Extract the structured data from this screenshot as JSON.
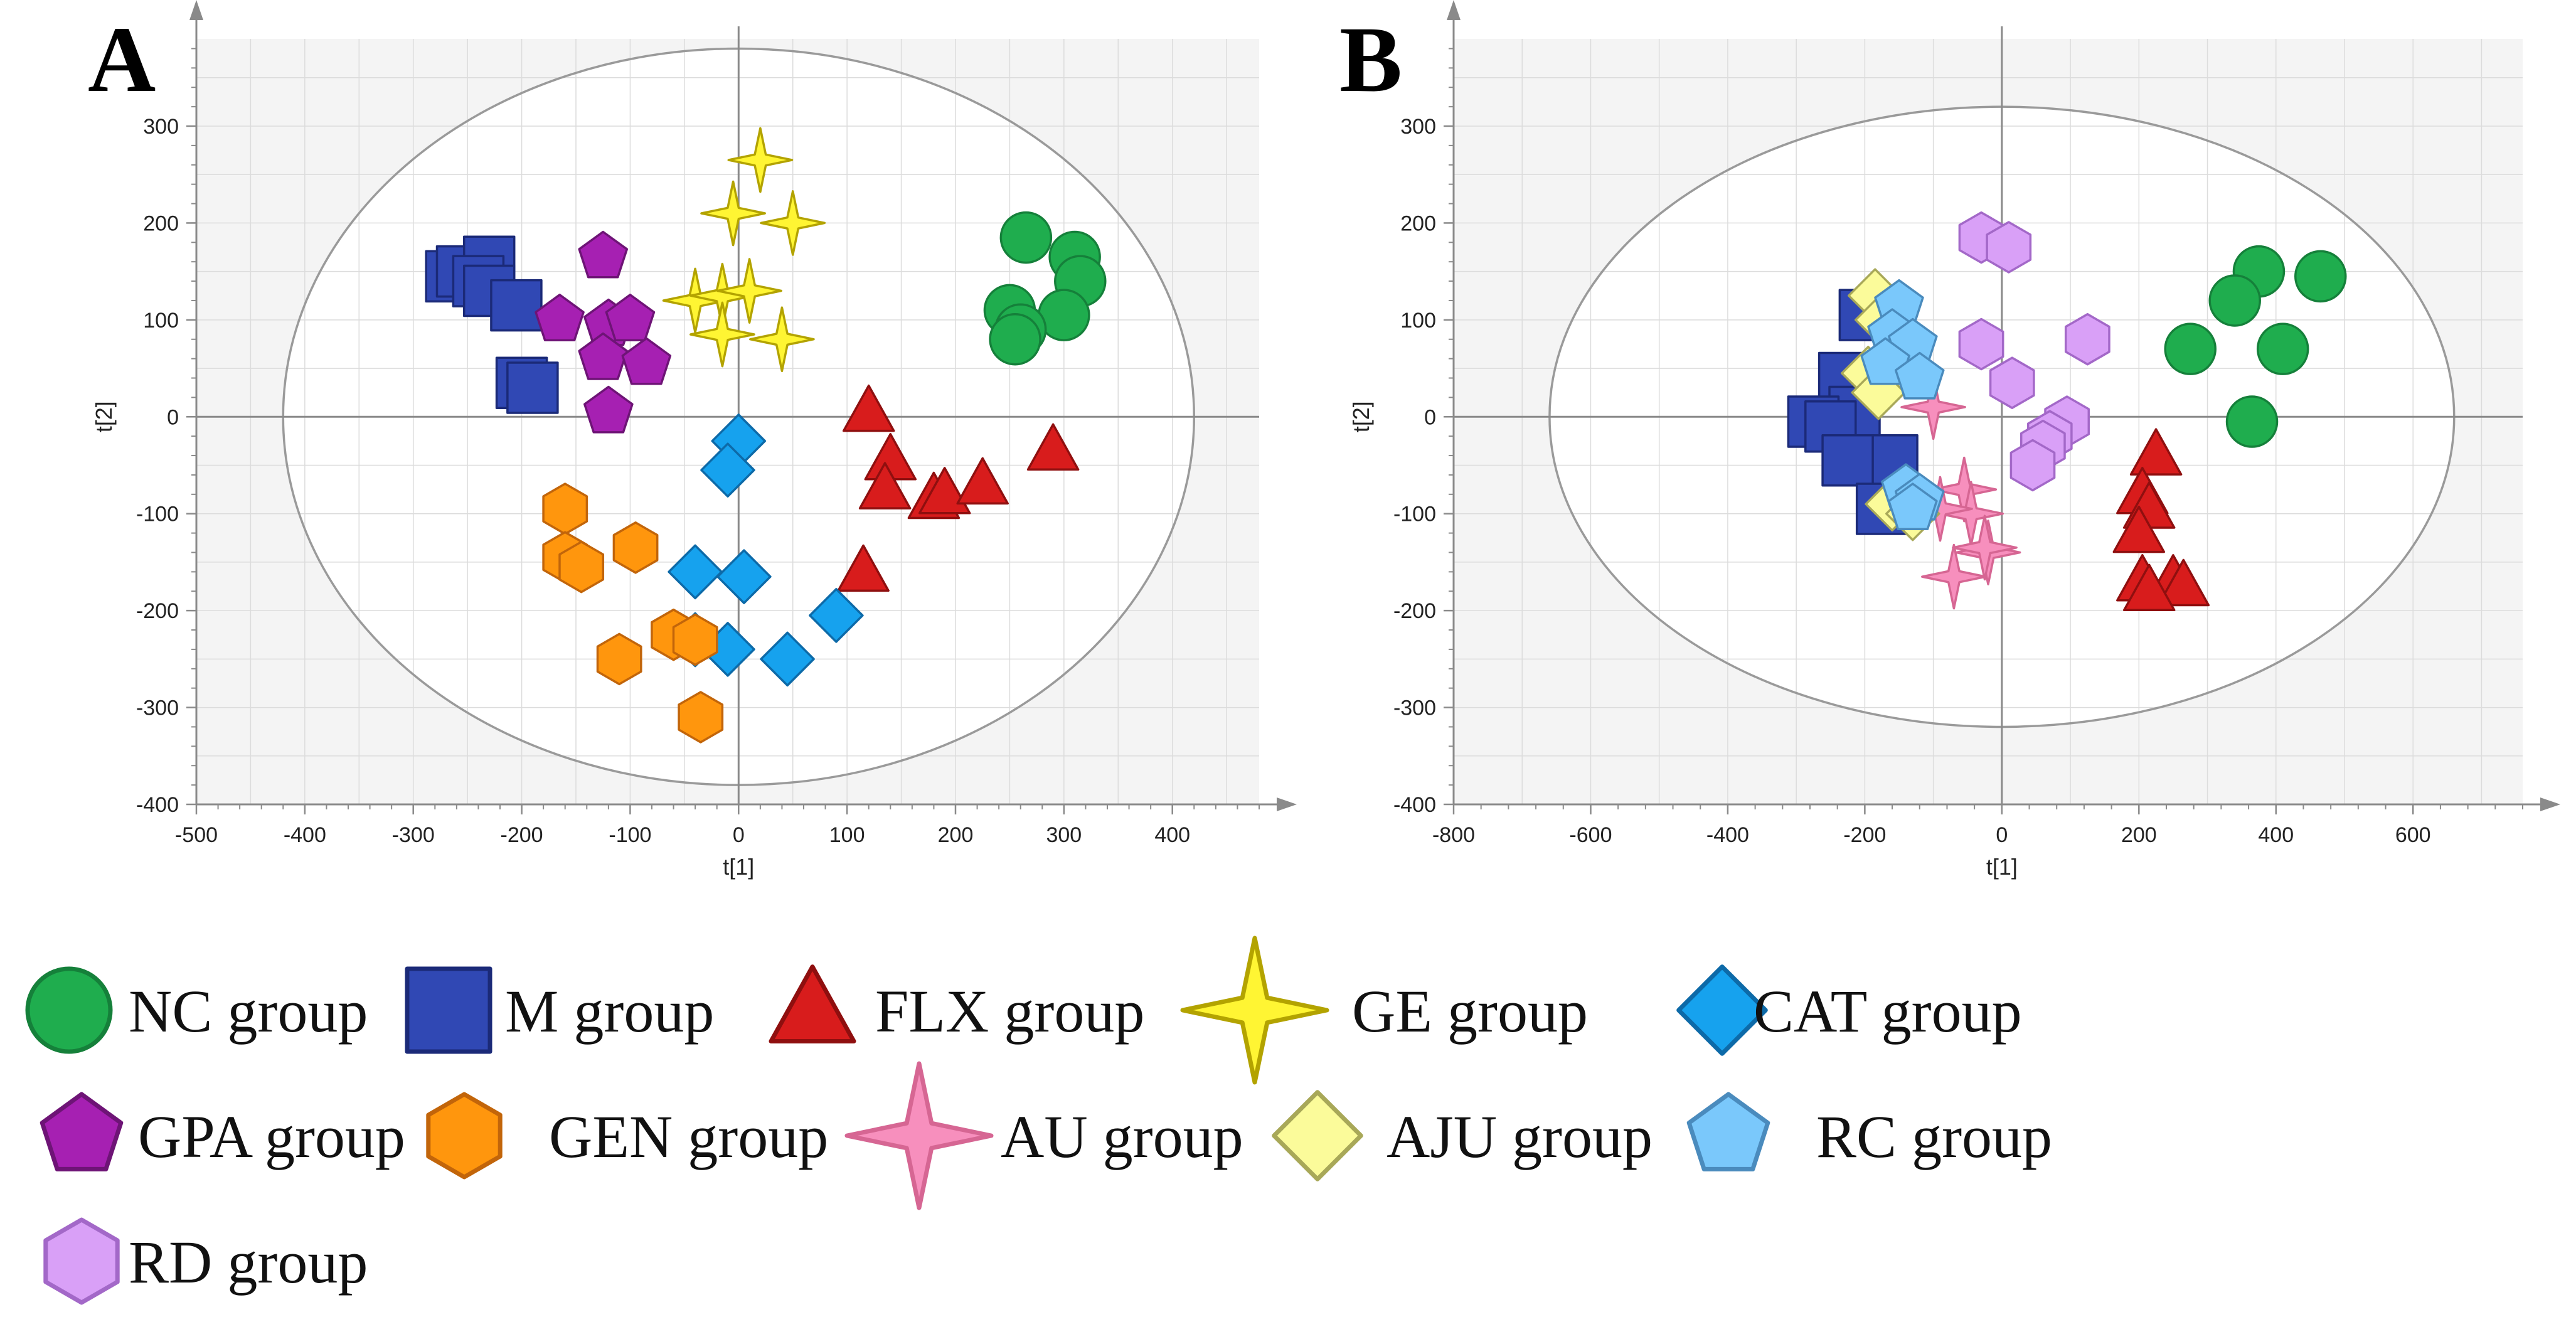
{
  "chart_data": [
    {
      "type": "scatter",
      "panel": "A",
      "xlabel": "t[1]",
      "ylabel": "t[2]",
      "xlim": [
        -500,
        480
      ],
      "ylim": [
        -400,
        390
      ],
      "xticks": [
        -500,
        -400,
        -300,
        -200,
        -100,
        0,
        100,
        200,
        300,
        400
      ],
      "yticks": [
        -400,
        -300,
        -200,
        -100,
        0,
        100,
        200,
        300
      ],
      "grid": true,
      "ellipse": {
        "rx": 420,
        "ry": 380
      },
      "series": [
        {
          "name": "NC group",
          "marker": "circle",
          "points": [
            [
              265,
              185
            ],
            [
              310,
              165
            ],
            [
              315,
              140
            ],
            [
              300,
              105
            ],
            [
              250,
              110
            ],
            [
              260,
              90
            ],
            [
              255,
              80
            ]
          ]
        },
        {
          "name": "M group",
          "marker": "square",
          "points": [
            [
              -265,
              145
            ],
            [
              -255,
              150
            ],
            [
              -230,
              160
            ],
            [
              -240,
              140
            ],
            [
              -230,
              130
            ],
            [
              -205,
              115
            ],
            [
              -200,
              35
            ],
            [
              -190,
              30
            ]
          ]
        },
        {
          "name": "FLX group",
          "marker": "triangle",
          "points": [
            [
              120,
              5
            ],
            [
              140,
              -45
            ],
            [
              135,
              -75
            ],
            [
              180,
              -85
            ],
            [
              190,
              -80
            ],
            [
              225,
              -70
            ],
            [
              290,
              -35
            ],
            [
              115,
              -160
            ]
          ]
        },
        {
          "name": "GE group",
          "marker": "star4",
          "points": [
            [
              20,
              265
            ],
            [
              -5,
              210
            ],
            [
              50,
              200
            ],
            [
              -40,
              120
            ],
            [
              -15,
              125
            ],
            [
              10,
              130
            ],
            [
              -15,
              85
            ],
            [
              40,
              80
            ]
          ]
        },
        {
          "name": "CAT group",
          "marker": "diamond",
          "points": [
            [
              0,
              -25
            ],
            [
              -10,
              -55
            ],
            [
              -40,
              -160
            ],
            [
              5,
              -165
            ],
            [
              -40,
              -230
            ],
            [
              -10,
              -240
            ],
            [
              45,
              -250
            ],
            [
              90,
              -205
            ]
          ]
        },
        {
          "name": "GPA group",
          "marker": "pentagon",
          "points": [
            [
              -125,
              165
            ],
            [
              -165,
              100
            ],
            [
              -120,
              95
            ],
            [
              -100,
              100
            ],
            [
              -125,
              60
            ],
            [
              -85,
              55
            ],
            [
              -120,
              5
            ]
          ]
        },
        {
          "name": "GEN group",
          "marker": "hexagon",
          "points": [
            [
              -160,
              -95
            ],
            [
              -95,
              -135
            ],
            [
              -160,
              -145
            ],
            [
              -145,
              -155
            ],
            [
              -60,
              -225
            ],
            [
              -40,
              -230
            ],
            [
              -110,
              -250
            ],
            [
              -35,
              -310
            ]
          ]
        }
      ]
    },
    {
      "type": "scatter",
      "panel": "B",
      "xlabel": "t[1]",
      "ylabel": "t[2]",
      "xlim": [
        -800,
        760
      ],
      "ylim": [
        -400,
        390
      ],
      "xticks": [
        -800,
        -600,
        -400,
        -200,
        0,
        200,
        400,
        600
      ],
      "yticks": [
        -400,
        -300,
        -200,
        -100,
        0,
        100,
        200,
        300
      ],
      "grid": true,
      "ellipse": {
        "rx": 660,
        "ry": 320
      },
      "series": [
        {
          "name": "NC group",
          "marker": "circle",
          "points": [
            [
              375,
              150
            ],
            [
              465,
              145
            ],
            [
              340,
              120
            ],
            [
              410,
              70
            ],
            [
              275,
              70
            ],
            [
              365,
              -5
            ]
          ]
        },
        {
          "name": "M group",
          "marker": "square",
          "points": [
            [
              -200,
              105
            ],
            [
              -230,
              40
            ],
            [
              -215,
              5
            ],
            [
              -275,
              -5
            ],
            [
              -250,
              -10
            ],
            [
              -160,
              -45
            ],
            [
              -225,
              -45
            ],
            [
              -175,
              -95
            ]
          ]
        },
        {
          "name": "FLX group",
          "marker": "triangle",
          "points": [
            [
              225,
              -40
            ],
            [
              205,
              -80
            ],
            [
              215,
              -95
            ],
            [
              200,
              -120
            ],
            [
              205,
              -170
            ],
            [
              250,
              -170
            ],
            [
              265,
              -175
            ],
            [
              215,
              -180
            ]
          ]
        },
        {
          "name": "AU group",
          "marker": "star4",
          "points": [
            [
              -100,
              10
            ],
            [
              -55,
              -75
            ],
            [
              -45,
              -100
            ],
            [
              -90,
              -95
            ],
            [
              -20,
              -140
            ],
            [
              -25,
              -135
            ],
            [
              -70,
              -165
            ]
          ]
        },
        {
          "name": "AJU group",
          "marker": "diamond",
          "points": [
            [
              -185,
              125
            ],
            [
              -175,
              100
            ],
            [
              -195,
              45
            ],
            [
              -180,
              25
            ],
            [
              -160,
              -90
            ],
            [
              -130,
              -100
            ]
          ]
        },
        {
          "name": "RC group",
          "marker": "pentagon",
          "points": [
            [
              -150,
              115
            ],
            [
              -160,
              85
            ],
            [
              -130,
              75
            ],
            [
              -170,
              55
            ],
            [
              -120,
              40
            ],
            [
              -140,
              -75
            ],
            [
              -120,
              -85
            ],
            [
              -130,
              -95
            ]
          ]
        },
        {
          "name": "RD group",
          "marker": "hexagon",
          "points": [
            [
              -30,
              185
            ],
            [
              10,
              175
            ],
            [
              125,
              80
            ],
            [
              -30,
              75
            ],
            [
              15,
              35
            ],
            [
              95,
              -5
            ],
            [
              70,
              -20
            ],
            [
              60,
              -30
            ],
            [
              45,
              -50
            ]
          ]
        }
      ]
    }
  ],
  "legend": [
    {
      "label": "NC group",
      "marker": "circle"
    },
    {
      "label": "M group",
      "marker": "square"
    },
    {
      "label": "FLX group",
      "marker": "triangle"
    },
    {
      "label": "GE group",
      "marker": "star4"
    },
    {
      "label": "CAT group",
      "marker": "diamond"
    },
    {
      "label": "GPA group",
      "marker": "pentagon"
    },
    {
      "label": "GEN group",
      "marker": "hexagon"
    },
    {
      "label": "AU group",
      "marker": "star4"
    },
    {
      "label": "AJU group",
      "marker": "diamond"
    },
    {
      "label": "RC group",
      "marker": "pentagon"
    },
    {
      "label": "RD group",
      "marker": "hexagon"
    }
  ],
  "colors": {
    "NC group": {
      "fill": "#1fad4e",
      "stroke": "#15803a"
    },
    "M group": {
      "fill": "#3048b4",
      "stroke": "#1b2a78"
    },
    "FLX group": {
      "fill": "#d81c1c",
      "stroke": "#8f0f0f"
    },
    "GE group": {
      "fill": "#fff533",
      "stroke": "#b3a300"
    },
    "CAT group": {
      "fill": "#16a2ee",
      "stroke": "#0d6aa8"
    },
    "GPA group": {
      "fill": "#a620b2",
      "stroke": "#6e1476"
    },
    "GEN group": {
      "fill": "#ff960d",
      "stroke": "#c2650a"
    },
    "AU group": {
      "fill": "#f78fbd",
      "stroke": "#d66693"
    },
    "AJU group": {
      "fill": "#fbfb9a",
      "stroke": "#a8a858"
    },
    "RC group": {
      "fill": "#7ac8fb",
      "stroke": "#4a8bbd"
    },
    "RD group": {
      "fill": "#d9a0f7",
      "stroke": "#a368c8"
    }
  }
}
